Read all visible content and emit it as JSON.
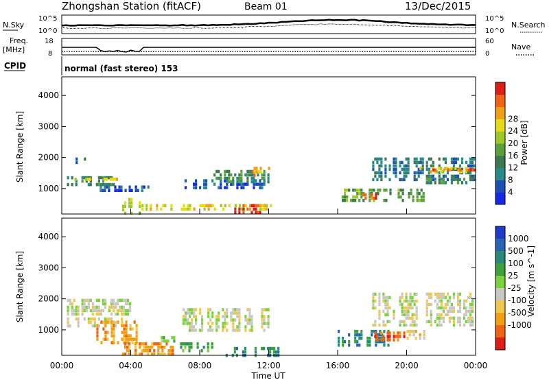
{
  "header": {
    "station": "Zhongshan Station (fitACF)",
    "beam": "Beam 01",
    "date": "13/Dec/2015"
  },
  "nsky_panel": {
    "left_label": "N.Sky",
    "right_label": "N.Search",
    "tick_top": "10^5",
    "tick_bottom": "10^0"
  },
  "freq_panel": {
    "label_line1": "Freq.",
    "label_line2": "[MHz]",
    "left_ticks": [
      "18",
      "8"
    ],
    "right_ticks": [
      "60",
      "0"
    ],
    "right_label": "Nave"
  },
  "cpid_panel": {
    "label": "CPID",
    "text": "normal (fast stereo) 153"
  },
  "chart_data": [
    {
      "type": "heatmap",
      "title": "Power",
      "ylabel": "Slant Range [km]",
      "ylim": [
        180,
        4600
      ],
      "yticks": [
        "1000",
        "2000",
        "3000",
        "4000"
      ],
      "colorbar_label": "Power [dB]",
      "colorbar_ticks": [
        "4",
        "8",
        "12",
        "16",
        "20",
        "24",
        "28"
      ],
      "colorbar_colors": [
        "#1428e6",
        "#1e50b4",
        "#2a8a8a",
        "#3c7850",
        "#5aa03c",
        "#a0c828",
        "#e6dc14",
        "#f0a014",
        "#f06414",
        "#dc1e14"
      ],
      "bands": [
        {
          "x": [
            0.3,
            3.0
          ],
          "y": [
            1100,
            1400
          ],
          "level": 3
        },
        {
          "x": [
            0.8,
            1.5
          ],
          "y": [
            1800,
            2000
          ],
          "level": 2
        },
        {
          "x": [
            0.5,
            3.2
          ],
          "y": [
            1250,
            1350
          ],
          "level": 6
        },
        {
          "x": [
            2.2,
            5.0
          ],
          "y": [
            900,
            1100
          ],
          "level": 1
        },
        {
          "x": [
            3.5,
            4.5
          ],
          "y": [
            200,
            700
          ],
          "level": 5
        },
        {
          "x": [
            4.5,
            12.5
          ],
          "y": [
            300,
            500
          ],
          "level": 6
        },
        {
          "x": [
            7.0,
            12.0
          ],
          "y": [
            1000,
            1300
          ],
          "level": 1
        },
        {
          "x": [
            10.0,
            11.5
          ],
          "y": [
            250,
            500
          ],
          "level": 9
        },
        {
          "x": [
            8.8,
            12.0
          ],
          "y": [
            1200,
            1600
          ],
          "level": 3
        },
        {
          "x": [
            11.0,
            12.0
          ],
          "y": [
            1400,
            1700
          ],
          "level": 7
        },
        {
          "x": [
            16.0,
            21.0
          ],
          "y": [
            600,
            1000
          ],
          "level": 4
        },
        {
          "x": [
            17.2,
            18.2
          ],
          "y": [
            650,
            850
          ],
          "level": 8
        },
        {
          "x": [
            18.0,
            24.0
          ],
          "y": [
            1300,
            2000
          ],
          "level": 2
        },
        {
          "x": [
            20.5,
            23.5
          ],
          "y": [
            1500,
            1700
          ],
          "level": 6
        },
        {
          "x": [
            21.5,
            24.0
          ],
          "y": [
            1550,
            1650
          ],
          "level": 8
        },
        {
          "x": [
            21.0,
            24.0
          ],
          "y": [
            1150,
            1350
          ],
          "level": 3
        }
      ]
    },
    {
      "type": "heatmap",
      "title": "Velocity",
      "ylabel": "Slant Range [km]",
      "ylim": [
        180,
        4600
      ],
      "yticks": [
        "1000",
        "2000",
        "3000",
        "4000"
      ],
      "xticks": [
        "00:00",
        "04:00",
        "08:00",
        "12:00",
        "16:00",
        "20:00",
        "00:00"
      ],
      "xlabel": "Time UT",
      "colorbar_label": "Velocity [m s^-1]",
      "colorbar_ticks": [
        "1000",
        "500",
        "100",
        "25",
        "-25",
        "-100",
        "-500",
        "-1000"
      ],
      "colorbar_colors": [
        "#1e3cc8",
        "#2864b4",
        "#2a8a7a",
        "#3ca03c",
        "#7ad23c",
        "#c8c8c0",
        "#f0c850",
        "#f0a014",
        "#f06414",
        "#dc1e14"
      ],
      "bands": [
        {
          "x": [
            0.3,
            3.5
          ],
          "y": [
            1100,
            1400
          ],
          "level": 5
        },
        {
          "x": [
            0.3,
            4.0
          ],
          "y": [
            1500,
            2000
          ],
          "level": 5
        },
        {
          "x": [
            2.0,
            4.5
          ],
          "y": [
            600,
            1300
          ],
          "level": 7
        },
        {
          "x": [
            3.5,
            6.5
          ],
          "y": [
            200,
            600
          ],
          "level": 7
        },
        {
          "x": [
            5.5,
            6.5
          ],
          "y": [
            600,
            800
          ],
          "level": 4
        },
        {
          "x": [
            6.5,
            9.0
          ],
          "y": [
            300,
            600
          ],
          "level": 3
        },
        {
          "x": [
            9.5,
            12.5
          ],
          "y": [
            200,
            450
          ],
          "level": 2
        },
        {
          "x": [
            7.0,
            12.0
          ],
          "y": [
            1000,
            1700
          ],
          "level": 5
        },
        {
          "x": [
            16.0,
            19.0
          ],
          "y": [
            500,
            1000
          ],
          "level": 2
        },
        {
          "x": [
            18.0,
            20.0
          ],
          "y": [
            650,
            950
          ],
          "level": 8
        },
        {
          "x": [
            18.0,
            24.0
          ],
          "y": [
            1200,
            2200
          ],
          "level": 5
        },
        {
          "x": [
            20.0,
            21.0
          ],
          "y": [
            700,
            1000
          ],
          "level": 6
        }
      ]
    }
  ]
}
